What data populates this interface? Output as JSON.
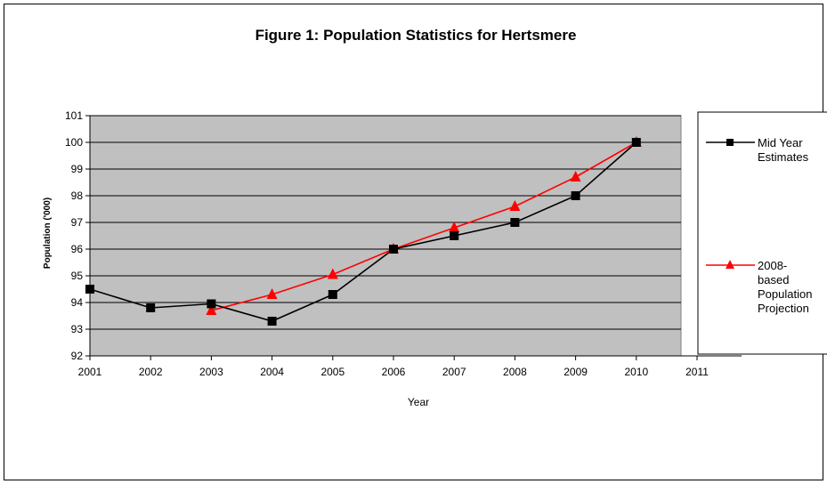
{
  "chart_data": {
    "type": "line",
    "title": "Figure 1: Population Statistics for Hertsmere",
    "xlabel": "Year",
    "ylabel": "Population ('000)",
    "categories": [
      "2001",
      "2002",
      "2003",
      "2004",
      "2005",
      "2006",
      "2007",
      "2008",
      "2009",
      "2010",
      "2011"
    ],
    "ylim": [
      92,
      101
    ],
    "yticks": [
      92,
      93,
      94,
      95,
      96,
      97,
      98,
      99,
      100,
      101
    ],
    "grid": true,
    "plot_background": "#c0c0c0",
    "legend_position": "right",
    "series": [
      {
        "name": "Mid Year Estimates",
        "legend_lines": [
          "Mid Year",
          "Estimates"
        ],
        "color": "#000000",
        "marker": "square",
        "x": [
          "2001",
          "2002",
          "2003",
          "2004",
          "2005",
          "2006",
          "2007",
          "2008",
          "2009",
          "2010"
        ],
        "values": [
          94.5,
          93.8,
          93.95,
          93.3,
          94.3,
          96.0,
          96.5,
          97.0,
          98.0,
          100.0
        ]
      },
      {
        "name": "2008-based Population Projection",
        "legend_lines": [
          "2008-",
          "based",
          "Population",
          "Projection"
        ],
        "color": "#ff0000",
        "marker": "triangle",
        "x": [
          "2003",
          "2004",
          "2005",
          "2006",
          "2007",
          "2008",
          "2009",
          "2010"
        ],
        "values": [
          93.7,
          94.3,
          95.05,
          96.0,
          96.8,
          97.6,
          98.7,
          100.0
        ]
      }
    ]
  }
}
